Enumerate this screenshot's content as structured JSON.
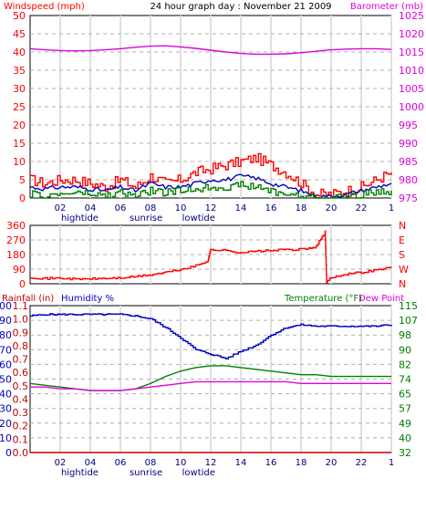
{
  "title": "24 hour graph day : November 21 2009",
  "hour_ticks": [
    "02",
    "04",
    "06",
    "08",
    "10",
    "12",
    "14",
    "16",
    "18",
    "20",
    "22",
    "1"
  ],
  "tide_labels": [
    "hightide",
    "sunrise",
    "lowtide"
  ],
  "chart_data": [
    {
      "type": "line",
      "panel": "wind-barometer",
      "left_axis_label": "Windspeed (mph)",
      "right_axis_label": "Barometer (mb)",
      "left_ticks": [
        0,
        5,
        10,
        15,
        20,
        25,
        30,
        35,
        40,
        45,
        50
      ],
      "right_ticks": [
        975,
        980,
        985,
        990,
        995,
        1000,
        1005,
        1010,
        1015,
        1020,
        1025
      ],
      "left_range": [
        0,
        50
      ],
      "right_range": [
        975,
        1025
      ],
      "colors": {
        "barometer": "#e000e0",
        "gust": "#ff0000",
        "avg_wind": "#0000c0",
        "wind": "#008000"
      },
      "x_hours": [
        0,
        1,
        2,
        3,
        4,
        5,
        6,
        7,
        8,
        9,
        10,
        11,
        12,
        13,
        14,
        15,
        16,
        17,
        18,
        19,
        20,
        21,
        22,
        23,
        24
      ],
      "barometer_mb": [
        1015.9,
        1015.6,
        1015.4,
        1015.3,
        1015.4,
        1015.6,
        1015.9,
        1016.3,
        1016.6,
        1016.7,
        1016.4,
        1016.0,
        1015.5,
        1015.0,
        1014.6,
        1014.4,
        1014.4,
        1014.5,
        1014.8,
        1015.2,
        1015.6,
        1015.8,
        1015.9,
        1015.9,
        1015.7
      ],
      "gust_mph": [
        5,
        4,
        5,
        5,
        4,
        3,
        5,
        3,
        6,
        4,
        5,
        7,
        8,
        9,
        10,
        11,
        9,
        7,
        4,
        1,
        1,
        2,
        3,
        5,
        7
      ],
      "avg_wind_mph": [
        3,
        2.5,
        3,
        3,
        2.5,
        2,
        3,
        2,
        4,
        3,
        3,
        4,
        5,
        5,
        6,
        5.5,
        4,
        3,
        2,
        0.5,
        0.5,
        1,
        2,
        3,
        4
      ],
      "wind_mph": [
        1,
        0.5,
        1,
        1.5,
        1,
        0.5,
        1.5,
        0.5,
        2,
        1.5,
        2,
        2.5,
        3,
        3,
        3.5,
        3,
        2,
        1,
        0.5,
        0,
        0,
        0.5,
        1,
        1.5,
        2
      ]
    },
    {
      "type": "line",
      "panel": "wind-direction",
      "left_ticks": [
        0,
        90,
        180,
        270,
        360
      ],
      "right_ticks": [
        "N",
        "W",
        "S",
        "E",
        "N"
      ],
      "range": [
        0,
        360
      ],
      "color": "#ff0000",
      "x_hours": [
        0,
        1,
        2,
        3,
        4,
        5,
        6,
        7,
        8,
        9,
        10,
        11,
        11.8,
        12,
        13,
        14,
        15,
        16,
        17,
        18.3,
        19,
        19.6,
        19.7,
        20,
        21,
        22,
        23,
        24
      ],
      "direction_deg": [
        40,
        32,
        35,
        28,
        30,
        33,
        36,
        44,
        55,
        70,
        88,
        110,
        140,
        210,
        205,
        192,
        200,
        205,
        210,
        212,
        230,
        320,
        10,
        40,
        60,
        70,
        85,
        100
      ]
    },
    {
      "type": "line",
      "panel": "rain-humidity-temp",
      "rainfall_label": "Rainfall (in)",
      "humidity_label": "Humidity %",
      "temperature_label": "Temperature (°F)",
      "dewpoint_label": "Dew Point",
      "rain_ticks": [
        "0.0",
        "0.1",
        "0.2",
        "0.3",
        "0.4",
        "0.5",
        "0.6",
        "0.7",
        "0.8",
        "0.9",
        "1.0",
        "1.1"
      ],
      "humidity_ticks": [
        0,
        10,
        20,
        30,
        40,
        50,
        60,
        70,
        80,
        90,
        100
      ],
      "temp_ticks": [
        32,
        40,
        49,
        57,
        65,
        74,
        82,
        90,
        98,
        107,
        115
      ],
      "humidity_range": [
        0,
        100
      ],
      "temp_range": [
        32,
        115
      ],
      "colors": {
        "rain": "#c00000",
        "humidity": "#0000c0",
        "temperature": "#008000",
        "dewpoint": "#e000e0"
      },
      "x_hours": [
        0,
        1,
        2,
        3,
        4,
        5,
        6,
        7,
        8,
        9,
        10,
        11,
        12,
        13,
        14,
        15,
        16,
        17,
        18,
        19,
        20,
        21,
        22,
        23,
        24
      ],
      "humidity_pct": [
        93,
        94,
        94,
        94,
        94,
        94,
        94,
        93,
        91,
        85,
        78,
        70,
        67,
        64,
        69,
        73,
        80,
        85,
        87,
        86,
        86,
        86,
        86,
        86,
        87
      ],
      "temperature_f": [
        71,
        70,
        69,
        68,
        67,
        67,
        67,
        68,
        71,
        75,
        78,
        80,
        81,
        81,
        80,
        79,
        78,
        77,
        76,
        76,
        75,
        75,
        75,
        75,
        75
      ],
      "dewpoint_f": [
        69,
        69,
        68,
        68,
        67,
        67,
        67,
        68,
        69,
        70,
        71,
        72,
        72,
        72,
        72,
        72,
        72,
        72,
        71,
        71,
        71,
        71,
        71,
        71,
        71
      ],
      "rain_in": [
        0,
        0,
        0,
        0,
        0,
        0,
        0,
        0,
        0,
        0,
        0,
        0,
        0,
        0,
        0,
        0,
        0,
        0,
        0,
        0,
        0,
        0,
        0,
        0,
        0
      ]
    }
  ]
}
